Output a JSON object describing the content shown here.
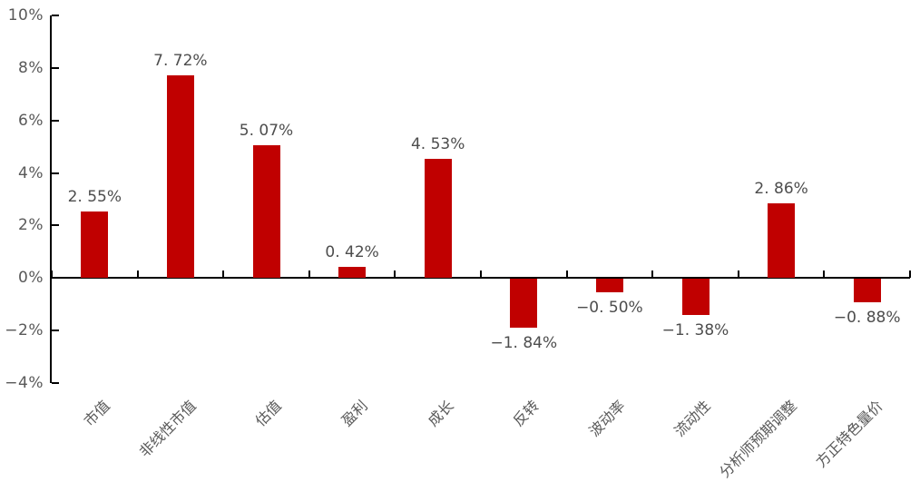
{
  "chart_data": {
    "type": "bar",
    "title": "",
    "xlabel": "",
    "ylabel": "",
    "categories": [
      "市值",
      "非线性市值",
      "估值",
      "盈利",
      "成长",
      "反转",
      "波动率",
      "流动性",
      "分析师预期调整",
      "方正特色量价"
    ],
    "values": [
      2.55,
      7.72,
      5.07,
      0.42,
      4.53,
      -1.84,
      -0.5,
      -1.38,
      2.86,
      -0.88
    ],
    "value_labels": [
      "2. 55%",
      "7. 72%",
      "5. 07%",
      "0. 42%",
      "4. 53%",
      "−1. 84%",
      "−0. 50%",
      "−1. 38%",
      "2. 86%",
      "−0. 88%"
    ],
    "y_ticks": [
      {
        "label": "10%",
        "value": 10
      },
      {
        "label": "8%",
        "value": 8
      },
      {
        "label": "6%",
        "value": 6
      },
      {
        "label": "4%",
        "value": 4
      },
      {
        "label": "2%",
        "value": 2
      },
      {
        "label": "0%",
        "value": 0
      },
      {
        "label": "−2%",
        "value": -2
      },
      {
        "label": "−4%",
        "value": -4
      }
    ],
    "ylim": [
      -4,
      10
    ],
    "grid": false,
    "legend_position": "none",
    "bar_color": "#c00000",
    "axis_color": "#000000",
    "tick_label_color": "#595959",
    "value_label_color": "#4d4d4d",
    "background_color": "#ffffff"
  }
}
